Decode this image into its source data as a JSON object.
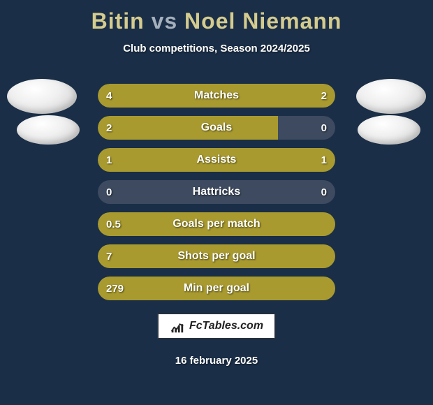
{
  "title": {
    "player1": "Bitin",
    "vs": "vs",
    "player2": "Noel Niemann"
  },
  "subtitle": "Club competitions, Season 2024/2025",
  "colors": {
    "background": "#1a2e47",
    "bar_fill": "#a89a2e",
    "bar_empty": "#3d4a5f",
    "title_player": "#d4cb8e",
    "title_vs": "#a5b0bd",
    "text": "#ffffff"
  },
  "stats": [
    {
      "label": "Matches",
      "left_value": "4",
      "right_value": "2",
      "left_width_pct": 66,
      "right_width_pct": 34
    },
    {
      "label": "Goals",
      "left_value": "2",
      "right_value": "0",
      "left_width_pct": 76,
      "right_width_pct": 0
    },
    {
      "label": "Assists",
      "left_value": "1",
      "right_value": "1",
      "left_width_pct": 50,
      "right_width_pct": 50
    },
    {
      "label": "Hattricks",
      "left_value": "0",
      "right_value": "0",
      "left_width_pct": 0,
      "right_width_pct": 0
    },
    {
      "label": "Goals per match",
      "left_value": "0.5",
      "right_value": "",
      "left_width_pct": 100,
      "right_width_pct": 0
    },
    {
      "label": "Shots per goal",
      "left_value": "7",
      "right_value": "",
      "left_width_pct": 100,
      "right_width_pct": 0
    },
    {
      "label": "Min per goal",
      "left_value": "279",
      "right_value": "",
      "left_width_pct": 100,
      "right_width_pct": 0
    }
  ],
  "footer": {
    "brand": "FcTables.com",
    "date": "16 february 2025"
  }
}
